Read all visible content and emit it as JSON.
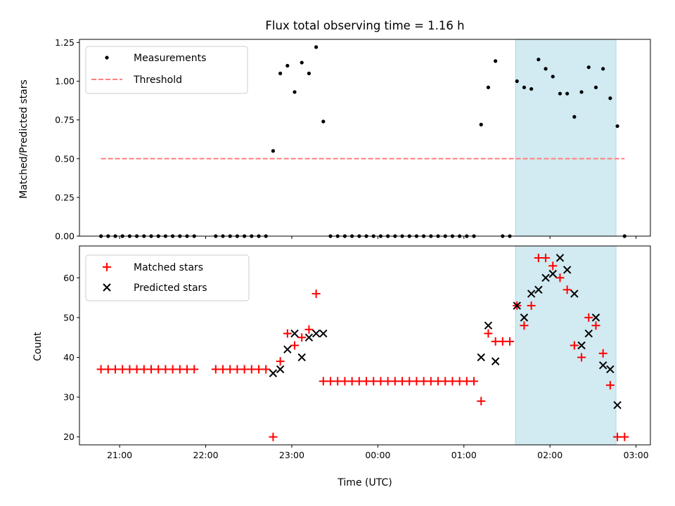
{
  "chart_data": [
    {
      "type": "scatter",
      "title": "Flux total observing time = 1.16 h",
      "xlabel": "",
      "ylabel": "Matched/Predicted stars",
      "ylim": [
        0,
        1.27
      ],
      "xlim": [
        "20:32",
        "03:10"
      ],
      "yticks": [
        "0.00",
        "0.25",
        "0.50",
        "0.75",
        "1.00",
        "1.25"
      ],
      "highlight_span": [
        "01:36",
        "02:46"
      ],
      "highlight_color": "#add8e6",
      "legend_position": "upper left",
      "series": [
        {
          "name": "Measurements",
          "marker": "dot",
          "color": "#000000",
          "points": [
            [
              "20:47",
              0
            ],
            [
              "20:52",
              0
            ],
            [
              "20:57",
              0
            ],
            [
              "21:02",
              0
            ],
            [
              "21:07",
              0
            ],
            [
              "21:12",
              0
            ],
            [
              "21:17",
              0
            ],
            [
              "21:22",
              0
            ],
            [
              "21:27",
              0
            ],
            [
              "21:32",
              0
            ],
            [
              "21:37",
              0
            ],
            [
              "21:42",
              0
            ],
            [
              "21:47",
              0
            ],
            [
              "21:52",
              0
            ],
            [
              "22:07",
              0
            ],
            [
              "22:12",
              0
            ],
            [
              "22:17",
              0
            ],
            [
              "22:22",
              0
            ],
            [
              "22:27",
              0
            ],
            [
              "22:32",
              0
            ],
            [
              "22:37",
              0
            ],
            [
              "22:42",
              0
            ],
            [
              "22:47",
              0.55
            ],
            [
              "22:52",
              1.05
            ],
            [
              "22:57",
              1.1
            ],
            [
              "23:02",
              0.93
            ],
            [
              "23:07",
              1.12
            ],
            [
              "23:12",
              1.05
            ],
            [
              "23:17",
              1.22
            ],
            [
              "23:22",
              0.74
            ],
            [
              "23:27",
              0
            ],
            [
              "23:32",
              0
            ],
            [
              "23:37",
              0
            ],
            [
              "23:42",
              0
            ],
            [
              "23:47",
              0
            ],
            [
              "23:52",
              0
            ],
            [
              "23:57",
              0
            ],
            [
              "00:02",
              0
            ],
            [
              "00:07",
              0
            ],
            [
              "00:12",
              0
            ],
            [
              "00:17",
              0
            ],
            [
              "00:22",
              0
            ],
            [
              "00:27",
              0
            ],
            [
              "00:32",
              0
            ],
            [
              "00:37",
              0
            ],
            [
              "00:42",
              0
            ],
            [
              "00:47",
              0
            ],
            [
              "00:52",
              0
            ],
            [
              "00:57",
              0
            ],
            [
              "01:02",
              0
            ],
            [
              "01:07",
              0
            ],
            [
              "01:12",
              0.72
            ],
            [
              "01:17",
              0.96
            ],
            [
              "01:22",
              1.13
            ],
            [
              "01:27",
              0
            ],
            [
              "01:32",
              0
            ],
            [
              "01:37",
              1.0
            ],
            [
              "01:42",
              0.96
            ],
            [
              "01:47",
              0.95
            ],
            [
              "01:52",
              1.14
            ],
            [
              "01:57",
              1.08
            ],
            [
              "02:02",
              1.03
            ],
            [
              "02:07",
              0.92
            ],
            [
              "02:12",
              0.92
            ],
            [
              "02:17",
              0.77
            ],
            [
              "02:22",
              0.93
            ],
            [
              "02:27",
              1.09
            ],
            [
              "02:32",
              0.96
            ],
            [
              "02:37",
              1.08
            ],
            [
              "02:42",
              0.89
            ],
            [
              "02:47",
              0.71
            ],
            [
              "02:52",
              0
            ]
          ]
        },
        {
          "name": "Threshold",
          "marker": "dashed-line",
          "color": "#ff7f7f",
          "points": [
            [
              "20:47",
              0.5
            ],
            [
              "02:52",
              0.5
            ]
          ]
        }
      ]
    },
    {
      "type": "scatter",
      "title": "",
      "xlabel": "Time (UTC)",
      "ylabel": "Count",
      "ylim": [
        18,
        68
      ],
      "xlim": [
        "20:32",
        "03:10"
      ],
      "yticks": [
        "20",
        "30",
        "40",
        "50",
        "60"
      ],
      "xticks": [
        "21:00",
        "22:00",
        "23:00",
        "00:00",
        "01:00",
        "02:00",
        "03:00"
      ],
      "highlight_span": [
        "01:36",
        "02:46"
      ],
      "highlight_color": "#add8e6",
      "legend_position": "upper left",
      "series": [
        {
          "name": "Matched stars",
          "marker": "plus",
          "color": "#ff0000",
          "points": [
            [
              "20:47",
              37
            ],
            [
              "20:52",
              37
            ],
            [
              "20:57",
              37
            ],
            [
              "21:02",
              37
            ],
            [
              "21:07",
              37
            ],
            [
              "21:12",
              37
            ],
            [
              "21:17",
              37
            ],
            [
              "21:22",
              37
            ],
            [
              "21:27",
              37
            ],
            [
              "21:32",
              37
            ],
            [
              "21:37",
              37
            ],
            [
              "21:42",
              37
            ],
            [
              "21:47",
              37
            ],
            [
              "21:52",
              37
            ],
            [
              "22:07",
              37
            ],
            [
              "22:12",
              37
            ],
            [
              "22:17",
              37
            ],
            [
              "22:22",
              37
            ],
            [
              "22:27",
              37
            ],
            [
              "22:32",
              37
            ],
            [
              "22:37",
              37
            ],
            [
              "22:42",
              37
            ],
            [
              "22:47",
              20
            ],
            [
              "22:52",
              39
            ],
            [
              "22:57",
              46
            ],
            [
              "23:02",
              43
            ],
            [
              "23:07",
              45
            ],
            [
              "23:12",
              47
            ],
            [
              "23:17",
              56
            ],
            [
              "23:22",
              34
            ],
            [
              "23:27",
              34
            ],
            [
              "23:32",
              34
            ],
            [
              "23:37",
              34
            ],
            [
              "23:42",
              34
            ],
            [
              "23:47",
              34
            ],
            [
              "23:52",
              34
            ],
            [
              "23:57",
              34
            ],
            [
              "00:02",
              34
            ],
            [
              "00:07",
              34
            ],
            [
              "00:12",
              34
            ],
            [
              "00:17",
              34
            ],
            [
              "00:22",
              34
            ],
            [
              "00:27",
              34
            ],
            [
              "00:32",
              34
            ],
            [
              "00:37",
              34
            ],
            [
              "00:42",
              34
            ],
            [
              "00:47",
              34
            ],
            [
              "00:52",
              34
            ],
            [
              "00:57",
              34
            ],
            [
              "01:02",
              34
            ],
            [
              "01:07",
              34
            ],
            [
              "01:12",
              29
            ],
            [
              "01:17",
              46
            ],
            [
              "01:22",
              44
            ],
            [
              "01:27",
              44
            ],
            [
              "01:32",
              44
            ],
            [
              "01:37",
              53
            ],
            [
              "01:42",
              48
            ],
            [
              "01:47",
              53
            ],
            [
              "01:52",
              65
            ],
            [
              "01:57",
              65
            ],
            [
              "02:02",
              63
            ],
            [
              "02:07",
              60
            ],
            [
              "02:12",
              57
            ],
            [
              "02:17",
              43
            ],
            [
              "02:22",
              40
            ],
            [
              "02:27",
              50
            ],
            [
              "02:32",
              48
            ],
            [
              "02:37",
              41
            ],
            [
              "02:42",
              33
            ],
            [
              "02:47",
              20
            ],
            [
              "02:52",
              20
            ]
          ]
        },
        {
          "name": "Predicted stars",
          "marker": "x",
          "color": "#000000",
          "points": [
            [
              "22:47",
              36
            ],
            [
              "22:52",
              37
            ],
            [
              "22:57",
              42
            ],
            [
              "23:02",
              46
            ],
            [
              "23:07",
              40
            ],
            [
              "23:12",
              45
            ],
            [
              "23:17",
              46
            ],
            [
              "23:22",
              46
            ],
            [
              "01:12",
              40
            ],
            [
              "01:17",
              48
            ],
            [
              "01:22",
              39
            ],
            [
              "01:37",
              53
            ],
            [
              "01:42",
              50
            ],
            [
              "01:47",
              56
            ],
            [
              "01:52",
              57
            ],
            [
              "01:57",
              60
            ],
            [
              "02:02",
              61
            ],
            [
              "02:07",
              65
            ],
            [
              "02:12",
              62
            ],
            [
              "02:17",
              56
            ],
            [
              "02:22",
              43
            ],
            [
              "02:27",
              46
            ],
            [
              "02:32",
              50
            ],
            [
              "02:37",
              38
            ],
            [
              "02:42",
              37
            ],
            [
              "02:47",
              28
            ]
          ]
        }
      ]
    }
  ]
}
